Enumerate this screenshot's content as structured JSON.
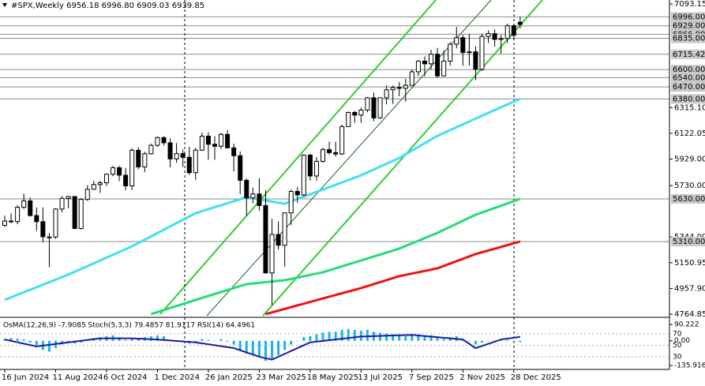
{
  "chart_data": {
    "type": "candlestick",
    "title": "#SPX,Weekly",
    "last_labels": [
      "6956.18",
      "6996.80",
      "6909.03",
      "6939.85"
    ],
    "categories": [
      "16 Jun 2024",
      null,
      null,
      null,
      null,
      null,
      null,
      null,
      "11 Aug 2024",
      null,
      null,
      null,
      null,
      null,
      null,
      null,
      "6 Oct 2024",
      null,
      null,
      null,
      null,
      null,
      null,
      null,
      "1 Dec 2024",
      null,
      null,
      null,
      null,
      null,
      null,
      null,
      "26 Jan 2025",
      null,
      null,
      null,
      null,
      null,
      null,
      null,
      "23 Mar 2025",
      null,
      null,
      null,
      null,
      null,
      null,
      null,
      "18 May 2025",
      null,
      null,
      null,
      null,
      null,
      null,
      null,
      "13 Jul 2025",
      null,
      null,
      null,
      null,
      null,
      null,
      null,
      "7 Sep 2025",
      null,
      null,
      null,
      null,
      null,
      null,
      null,
      "2 Nov 2025",
      null,
      null,
      null,
      null,
      null,
      null,
      null,
      "28 Dec 2025",
      null
    ],
    "open": [
      5431,
      5464,
      5460,
      5567,
      5615,
      5505,
      5459,
      5344,
      5344,
      5554,
      5634,
      5648,
      5408,
      5626,
      5702,
      5738,
      5751,
      5815,
      5864,
      5808,
      5728,
      5995,
      5870,
      5969,
      6032,
      6090,
      6051,
      5930,
      5970,
      5942,
      5827,
      5996,
      6101,
      6040,
      6025,
      6114,
      6013,
      5954,
      5770,
      5638,
      5667,
      5580,
      5074,
      5363,
      5282,
      5525,
      5686,
      5660,
      5958,
      5802,
      5912,
      6000,
      5977,
      5967,
      6173,
      6279,
      6259,
      6297,
      6389,
      6238,
      6389,
      6449,
      6466,
      6460,
      6482,
      6584,
      6664,
      6644,
      6716,
      6553,
      6664,
      6791,
      6840,
      6729,
      6734,
      6603,
      6849,
      6870,
      6827,
      6834,
      6930,
      6956.18
    ],
    "high": [
      5505,
      5523,
      5583,
      5669,
      5640,
      5566,
      5566,
      5375,
      5561,
      5651,
      5651,
      5650,
      5636,
      5733,
      5767,
      5767,
      5822,
      5878,
      5878,
      5862,
      6012,
      6017,
      5984,
      6044,
      6099,
      6100,
      6085,
      6049,
      6000,
      6021,
      6014,
      6128,
      6130,
      6101,
      6127,
      6147,
      6045,
      5986,
      5782,
      5715,
      5786,
      5695,
      5481,
      5460,
      5528,
      5700,
      5720,
      5964,
      5970,
      5944,
      6016,
      6060,
      6060,
      6187,
      6285,
      6290,
      6316,
      6395,
      6427,
      6390,
      6481,
      6481,
      6508,
      6532,
      6600,
      6672,
      6699,
      6750,
      6764,
      6744,
      6807,
      6920,
      6860,
      6870,
      6776,
      6870,
      6895,
      6902,
      6860,
      6945,
      6945,
      6996.8
    ],
    "low": [
      5420,
      5447,
      5440,
      5555,
      5497,
      5390,
      5303,
      5119,
      5330,
      5530,
      5560,
      5402,
      5400,
      5615,
      5698,
      5674,
      5726,
      5800,
      5762,
      5696,
      5696,
      5853,
      5830,
      5963,
      6020,
      6030,
      5867,
      5900,
      5870,
      5809,
      5773,
      5990,
      5923,
      5923,
      6004,
      6010,
      5837,
      5666,
      5505,
      5597,
      5540,
      5070,
      4835,
      5250,
      5120,
      5433,
      5600,
      5650,
      5768,
      5767,
      5900,
      5963,
      5948,
      5960,
      6170,
      6201,
      6201,
      6280,
      6213,
      6230,
      6340,
      6343,
      6400,
      6360,
      6480,
      6550,
      6550,
      6600,
      6540,
      6550,
      6630,
      6760,
      6630,
      6630,
      6521,
      6590,
      6800,
      6772,
      6720,
      6800,
      6824,
      6909.03
    ],
    "close": [
      5464,
      5460,
      5567,
      5615,
      5505,
      5459,
      5346,
      5344,
      5554,
      5634,
      5648,
      5408,
      5626,
      5702,
      5738,
      5751,
      5815,
      5864,
      5808,
      5728,
      5995,
      5870,
      5969,
      6032,
      6090,
      6051,
      5930,
      5970,
      5942,
      5827,
      5996,
      6101,
      6040,
      6025,
      6114,
      6013,
      5954,
      5770,
      5638,
      5667,
      5580,
      5074,
      5363,
      5282,
      5525,
      5686,
      5660,
      5958,
      5802,
      5912,
      6000,
      5977,
      5967,
      6173,
      6279,
      6259,
      6297,
      6389,
      6238,
      6389,
      6449,
      6466,
      6460,
      6482,
      6584,
      6664,
      6644,
      6716,
      6553,
      6664,
      6791,
      6840,
      6729,
      6734,
      6603,
      6849,
      6870,
      6827,
      6834,
      6930,
      6858,
      6939.85
    ],
    "ylim": [
      4764.85,
      7093.15
    ],
    "yticks": [
      7093.15,
      {
        "value": 6315.1,
        "label": "6315.10"
      },
      6122.05,
      {
        "value": 5929,
        "label": "5929.00"
      },
      {
        "value": 5730,
        "label": "5730.00"
      },
      {
        "value": 5344,
        "label": "5344.00"
      },
      5150.95,
      {
        "value": 4957.9,
        "label": "4957.90"
      },
      4764.85
    ],
    "levels": [
      {
        "value": 6996,
        "label": "6996.00"
      },
      {
        "value": 6929,
        "label": "6929.00"
      },
      {
        "value": 6866,
        "label": "6866.00"
      },
      {
        "value": 6835,
        "label": "6835.00"
      },
      6715.42,
      {
        "value": 6600,
        "label": "6600.00"
      },
      {
        "value": 6540,
        "label": "6540.00"
      },
      {
        "value": 6470,
        "label": "6470.00"
      },
      {
        "value": 6380,
        "label": "6380.00"
      },
      {
        "value": 5630,
        "label": "5630.00"
      },
      {
        "value": 5310,
        "label": "5310.00"
      }
    ],
    "overlays": [
      {
        "color": "#40e0f0",
        "x": [
          0,
          10,
          20,
          30,
          38,
          44,
          50,
          56,
          62,
          68,
          74,
          81
        ],
        "values": [
          4872,
          5062,
          5274,
          5523,
          5642,
          5594,
          5700,
          5807,
          5937,
          6103,
          6233,
          6381
        ]
      },
      {
        "color": "#22dd77",
        "x": [
          23,
          30,
          38,
          44,
          50,
          56,
          62,
          68,
          74,
          81
        ],
        "values": [
          4765,
          4872,
          4990,
          5020,
          5079,
          5168,
          5257,
          5375,
          5511,
          5630
        ]
      },
      {
        "color": "#ee1111",
        "x": [
          41,
          50,
          56,
          62,
          68,
          74,
          81
        ],
        "values": [
          4765,
          4883,
          4961,
          5050,
          5109,
          5216,
          5310
        ]
      }
    ],
    "indicator": {
      "label": "OsMA(12,26,9) -7.9085 Stoch(5,3,3) 79.4857 81.9117 RSI(14) 64.4961",
      "osma_color": "#1ab0f0",
      "osma": [
        10,
        15,
        12,
        8,
        -10,
        -30,
        -50,
        -60,
        -40,
        -20,
        -5,
        -15,
        -10,
        5,
        15,
        20,
        25,
        30,
        20,
        5,
        15,
        10,
        20,
        25,
        30,
        25,
        5,
        0,
        -5,
        -15,
        -5,
        10,
        5,
        0,
        10,
        -5,
        -20,
        -50,
        -70,
        -80,
        -90,
        -110,
        -100,
        -80,
        -50,
        -20,
        0,
        20,
        25,
        35,
        45,
        50,
        50,
        60,
        65,
        60,
        55,
        60,
        50,
        45,
        40,
        35,
        30,
        25,
        30,
        35,
        30,
        30,
        15,
        10,
        20,
        25,
        10,
        0,
        -20,
        -10,
        0,
        -5,
        0,
        5,
        0,
        -7.9085
      ],
      "osma_ylim": [
        -135.9167,
        90.222
      ],
      "osma_ticks": [
        90.222,
        {
          "value": 0,
          "label": "0.00"
        },
        -135.9167
      ],
      "rsi_color": "#1a1aa6",
      "rsi_x": [
        0,
        5,
        10,
        15,
        20,
        24,
        30,
        36,
        40,
        42,
        48,
        56,
        64,
        72,
        74,
        78,
        81
      ],
      "rsi": [
        60,
        48,
        55,
        62,
        62,
        60,
        55,
        45,
        30,
        25,
        55,
        65,
        68,
        60,
        45,
        60,
        64.4961
      ],
      "rsi_ylim": [
        8,
        93
      ],
      "rsi_ticks": [
        70,
        50,
        30
      ]
    }
  }
}
